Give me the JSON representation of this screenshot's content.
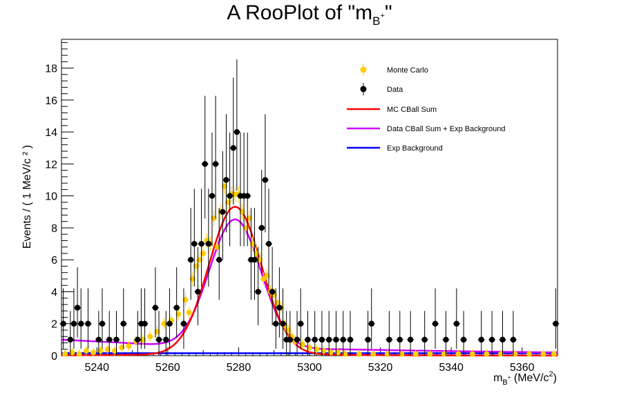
{
  "title": {
    "prefix": "A RooPlot of \"m",
    "sub": "B",
    "sup": "+",
    "suffix": "\""
  },
  "chart_data": {
    "type": "scatter",
    "xlabel": "m_{B⁺} (MeV/c²)",
    "ylabel": "Events / ( 1 MeV/c ² )",
    "xlim": [
      5230,
      5370
    ],
    "ylim": [
      0,
      19.8
    ],
    "xticks": [
      5240,
      5260,
      5280,
      5300,
      5320,
      5340,
      5360
    ],
    "yticks": [
      0,
      2,
      4,
      6,
      8,
      10,
      12,
      14,
      16,
      18
    ],
    "grid": false,
    "legend_position": "top-right",
    "legend": [
      {
        "label": "Monte Carlo",
        "kind": "marker",
        "color": "#ffcc00"
      },
      {
        "label": "Data",
        "kind": "marker",
        "color": "#000000"
      },
      {
        "label": "MC CBall Sum",
        "kind": "line",
        "color": "#ff0000"
      },
      {
        "label": "Data CBall Sum + Exp Background",
        "kind": "line",
        "color": "#cc00ff"
      },
      {
        "label": "Exp Background",
        "kind": "line",
        "color": "#0000ff"
      }
    ],
    "data_series": {
      "name": "Data",
      "color": "#000000",
      "x": [
        5230.5,
        5232.5,
        5233.5,
        5234.5,
        5235.5,
        5237.5,
        5240.5,
        5241.5,
        5243.5,
        5245.5,
        5247.5,
        5251.5,
        5252.5,
        5253.5,
        5256.5,
        5257.5,
        5259.5,
        5260.5,
        5262.5,
        5264.5,
        5266.5,
        5267.5,
        5268.5,
        5269.5,
        5270.5,
        5271.5,
        5272.5,
        5273.5,
        5274.5,
        5275.5,
        5276.5,
        5277.5,
        5278.5,
        5279.5,
        5280.5,
        5281.5,
        5282.5,
        5283.5,
        5284.5,
        5285.5,
        5286.5,
        5287.5,
        5288.5,
        5289.5,
        5290.5,
        5291.5,
        5292.5,
        5293.5,
        5294.5,
        5296.5,
        5297.5,
        5299.5,
        5301.5,
        5303.5,
        5305.5,
        5307.5,
        5309.5,
        5311.5,
        5316.5,
        5317.5,
        5322.5,
        5325.5,
        5328.5,
        5332.5,
        5335.5,
        5338.5,
        5341.5,
        5343.5,
        5348.5,
        5351.5,
        5354.5,
        5357.5,
        5369.5
      ],
      "y": [
        2,
        1,
        2,
        3,
        2,
        2,
        1,
        2,
        1,
        1,
        2,
        1,
        2,
        2,
        3,
        1,
        1,
        2,
        3,
        2,
        6,
        7,
        4,
        7,
        12,
        7,
        10,
        12,
        6,
        9,
        11,
        10,
        13,
        14,
        10,
        10,
        10,
        6,
        6,
        4,
        8,
        11,
        7,
        4,
        2,
        3,
        2,
        1,
        1,
        1,
        2,
        1,
        1,
        1,
        1,
        1,
        1,
        1,
        1,
        2,
        1,
        1,
        1,
        1,
        2,
        1,
        2,
        1,
        1,
        1,
        1,
        1,
        2
      ]
    },
    "mc_series": {
      "name": "Monte Carlo",
      "color": "#ffcc00",
      "x": [
        5231,
        5233,
        5235,
        5237,
        5239,
        5241,
        5243,
        5245,
        5247,
        5249,
        5251,
        5253,
        5255,
        5257,
        5259,
        5261,
        5263,
        5265,
        5266,
        5267,
        5268,
        5269,
        5270,
        5271,
        5272,
        5273,
        5274,
        5275,
        5276,
        5277,
        5278,
        5279,
        5280,
        5281,
        5282,
        5283,
        5284,
        5285,
        5286,
        5287,
        5288,
        5289,
        5290,
        5291,
        5292,
        5293,
        5294,
        5295,
        5296,
        5298,
        5300,
        5302,
        5304,
        5306,
        5308,
        5310,
        5314,
        5318,
        5322,
        5326,
        5330,
        5334,
        5338,
        5342,
        5346,
        5350,
        5354,
        5358,
        5362,
        5366,
        5369
      ],
      "y": [
        0.1,
        0.2,
        0.1,
        0.3,
        0.2,
        0.3,
        0.4,
        0.3,
        0.5,
        0.6,
        0.9,
        1.0,
        1.2,
        1.5,
        2.0,
        2.2,
        2.6,
        3.5,
        2.7,
        4.8,
        5.6,
        6.0,
        6.4,
        7.2,
        7.0,
        8.6,
        6.8,
        9.0,
        10.6,
        9.6,
        10.1,
        10.1,
        10.1,
        9.0,
        8.0,
        8.6,
        7.0,
        6.4,
        6.0,
        4.8,
        5.0,
        4.0,
        3.8,
        3.3,
        3.0,
        1.9,
        1.6,
        1.2,
        0.9,
        0.7,
        0.5,
        0.4,
        0.3,
        0.2,
        0.2,
        0.1,
        0.1,
        0.1,
        0.1,
        0.1,
        0.1,
        0.1,
        0.1,
        0.1,
        0.1,
        0.1,
        0.1,
        0.1,
        0.1,
        0.1,
        0.1
      ]
    },
    "mc_cball_sum": {
      "name": "MC CBall Sum",
      "color": "#ff0000",
      "mean": 5279,
      "amplitude": 9.2,
      "sigma": 7.4
    },
    "data_cball_exp": {
      "name": "Data CBall Sum + Exp Background",
      "color": "#cc00ff",
      "mean": 5279,
      "amplitude": 8.3,
      "sigma": 7.3,
      "tail_at_5230": 1.0,
      "tail_at_5370": 0.2
    },
    "exp_background": {
      "name": "Exp Background",
      "color": "#0000ff",
      "value_at_5230": 0.15,
      "value_at_5370": 0.15
    }
  }
}
